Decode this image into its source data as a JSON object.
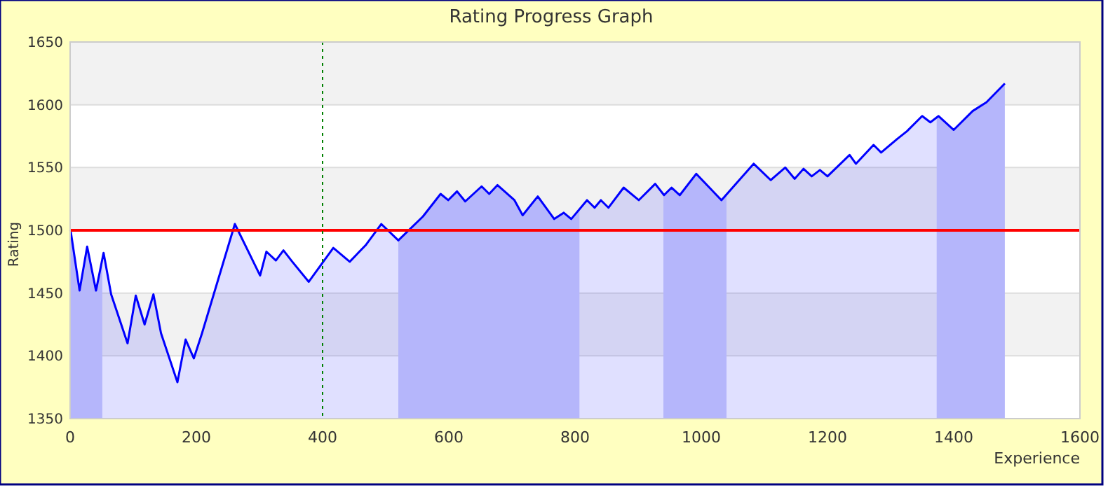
{
  "chart_data": {
    "type": "area",
    "title": "Rating Progress Graph",
    "xlabel": "Experience",
    "ylabel": "Rating",
    "xlim": [
      0,
      1600
    ],
    "xticks": [
      0,
      200,
      400,
      600,
      800,
      1000,
      1200,
      1400,
      1600
    ],
    "ylim": [
      1350,
      1650
    ],
    "yticks": [
      1350,
      1400,
      1450,
      1500,
      1550,
      1600,
      1650
    ],
    "grid": "y",
    "series": [
      {
        "color": "#0000ff",
        "x": [
          0,
          1,
          15,
          27,
          41,
          53,
          65,
          91,
          104,
          118,
          132,
          144,
          170,
          183,
          196,
          209,
          261,
          301,
          311,
          326,
          338,
          352,
          378,
          417,
          443,
          468,
          493,
          520,
          559,
          587,
          599,
          613,
          626,
          652,
          664,
          677,
          704,
          717,
          741,
          767,
          782,
          794,
          819,
          831,
          841,
          853,
          877,
          901,
          927,
          941,
          953,
          966,
          992,
          1032,
          1083,
          1110,
          1133,
          1148,
          1162,
          1175,
          1188,
          1200,
          1235,
          1245,
          1273,
          1285,
          1311,
          1326,
          1350,
          1363,
          1376,
          1400,
          1430,
          1452,
          1481
        ],
        "values": [
          1500,
          1499,
          1452,
          1487,
          1452,
          1482,
          1449,
          1410,
          1448,
          1425,
          1449,
          1418,
          1379,
          1413,
          1398,
          1418,
          1505,
          1464,
          1483,
          1476,
          1484,
          1475,
          1459,
          1486,
          1475,
          1488,
          1505,
          1492,
          1511,
          1529,
          1524,
          1531,
          1523,
          1535,
          1529,
          1536,
          1524,
          1512,
          1527,
          1509,
          1514,
          1509,
          1524,
          1518,
          1524,
          1518,
          1534,
          1524,
          1537,
          1528,
          1534,
          1528,
          1545,
          1524,
          1553,
          1540,
          1550,
          1541,
          1549,
          1543,
          1548,
          1543,
          1560,
          1553,
          1568,
          1562,
          1573,
          1579,
          1591,
          1586,
          1591,
          1580,
          1595,
          1602,
          1617
        ]
      }
    ],
    "ref_lines": [
      {
        "axis": "y",
        "value": 1500,
        "color": "#ff0000",
        "line_style": "solid"
      },
      {
        "axis": "x",
        "value": 400,
        "color": "#008000",
        "line_style": "dotted"
      }
    ],
    "bands": [
      {
        "axis": "x",
        "from": 0,
        "to": 51,
        "color": "#cfd0fb"
      },
      {
        "axis": "x",
        "from": 520,
        "to": 807,
        "color": "#cfd0fb"
      },
      {
        "axis": "x",
        "from": 940,
        "to": 1040,
        "color": "#cfd0fb"
      },
      {
        "axis": "x",
        "from": 1373,
        "to": 1482,
        "color": "#cfd0fb"
      }
    ]
  }
}
